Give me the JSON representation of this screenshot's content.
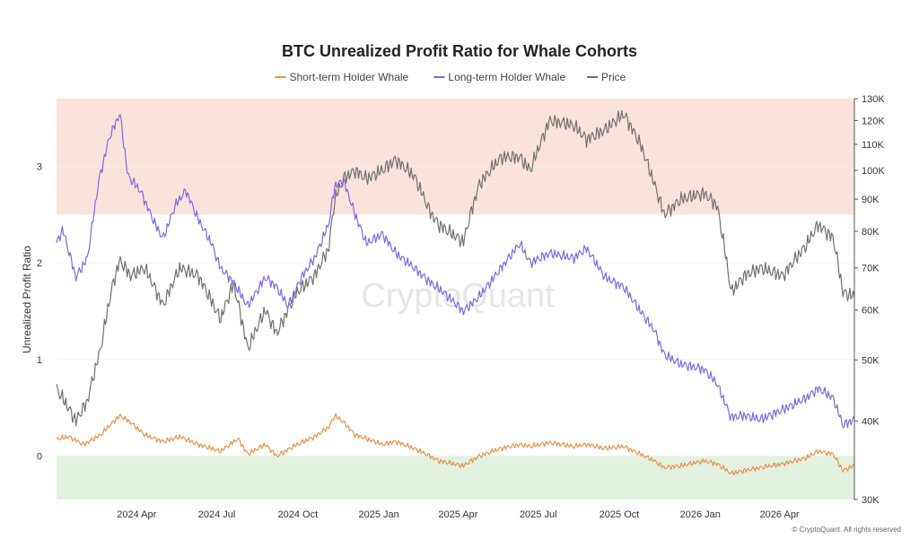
{
  "chart_data": {
    "type": "line",
    "title": "BTC Unrealized Profit Ratio for Whale Cohorts",
    "ylabel": "Unrealized Profit Ratio",
    "ylim": [
      -0.45,
      3.7
    ],
    "y2_scale": "log",
    "y2_range": [
      30000,
      130000
    ],
    "y_ticks": [
      "0",
      "1",
      "2",
      "3"
    ],
    "y2_ticks": [
      "30K",
      "40K",
      "50K",
      "60K",
      "70K",
      "80K",
      "90K",
      "100K",
      "110K",
      "120K",
      "130K"
    ],
    "x_ticks": [
      "2024 Apr",
      "2024 Jul",
      "2024 Oct",
      "2025 Jan",
      "2025 Apr",
      "2025 Jul",
      "2025 Oct",
      "2026 Jan",
      "2026 Apr"
    ],
    "x_range": [
      "2024-01-01",
      "2026-06-25"
    ],
    "legend_position": "top-center",
    "zones": [
      {
        "name": "high",
        "from": 2.5,
        "to": 3.7,
        "color": "#fbe3dc"
      },
      {
        "name": "low",
        "from": -0.45,
        "to": 0,
        "color": "#e3f1e1"
      }
    ],
    "series": [
      {
        "name": "Short-term Holder Whale",
        "axis": "left",
        "color": "#e8914a",
        "x": [
          "2024-01-01",
          "2024-01-15",
          "2024-02-01",
          "2024-02-20",
          "2024-03-05",
          "2024-03-13",
          "2024-03-25",
          "2024-04-10",
          "2024-05-01",
          "2024-05-20",
          "2024-06-10",
          "2024-07-05",
          "2024-07-25",
          "2024-08-05",
          "2024-08-25",
          "2024-09-07",
          "2024-09-30",
          "2024-10-20",
          "2024-11-05",
          "2024-11-12",
          "2024-11-22",
          "2024-12-05",
          "2024-12-18",
          "2025-01-05",
          "2025-01-20",
          "2025-02-10",
          "2025-02-28",
          "2025-03-10",
          "2025-04-07",
          "2025-04-25",
          "2025-05-20",
          "2025-06-10",
          "2025-06-22",
          "2025-07-14",
          "2025-08-10",
          "2025-08-25",
          "2025-09-15",
          "2025-10-06",
          "2025-10-25",
          "2025-11-10",
          "2025-11-21",
          "2025-12-10",
          "2026-01-05",
          "2026-01-20",
          "2026-02-05",
          "2026-02-20",
          "2026-03-10",
          "2026-04-05",
          "2026-05-01",
          "2026-05-15",
          "2026-06-01",
          "2026-06-12",
          "2026-06-25"
        ],
        "values": [
          0.18,
          0.2,
          0.12,
          0.22,
          0.35,
          0.42,
          0.35,
          0.22,
          0.15,
          0.2,
          0.12,
          0.05,
          0.18,
          0.02,
          0.12,
          0.0,
          0.12,
          0.2,
          0.3,
          0.42,
          0.35,
          0.22,
          0.18,
          0.12,
          0.15,
          0.08,
          0.0,
          -0.05,
          -0.1,
          0.0,
          0.08,
          0.12,
          0.1,
          0.14,
          0.1,
          0.12,
          0.08,
          0.1,
          0.02,
          -0.05,
          -0.12,
          -0.1,
          -0.05,
          -0.08,
          -0.18,
          -0.15,
          -0.12,
          -0.08,
          -0.02,
          0.05,
          0.02,
          -0.15,
          -0.1
        ]
      },
      {
        "name": "Long-term Holder Whale",
        "axis": "left",
        "color": "#7b6ae0",
        "x": [
          "2024-01-01",
          "2024-01-08",
          "2024-01-23",
          "2024-02-05",
          "2024-02-18",
          "2024-03-01",
          "2024-03-13",
          "2024-03-22",
          "2024-04-05",
          "2024-04-22",
          "2024-05-01",
          "2024-05-15",
          "2024-05-27",
          "2024-06-10",
          "2024-06-25",
          "2024-07-05",
          "2024-07-20",
          "2024-08-05",
          "2024-08-25",
          "2024-09-07",
          "2024-09-20",
          "2024-10-05",
          "2024-10-20",
          "2024-11-05",
          "2024-11-12",
          "2024-11-22",
          "2024-12-05",
          "2024-12-18",
          "2025-01-05",
          "2025-01-20",
          "2025-02-10",
          "2025-02-28",
          "2025-03-15",
          "2025-04-07",
          "2025-04-25",
          "2025-05-20",
          "2025-06-10",
          "2025-06-22",
          "2025-07-14",
          "2025-08-10",
          "2025-08-25",
          "2025-09-15",
          "2025-10-06",
          "2025-10-25",
          "2025-11-10",
          "2025-11-21",
          "2025-12-10",
          "2026-01-05",
          "2026-01-20",
          "2026-02-05",
          "2026-02-20",
          "2026-03-10",
          "2026-04-05",
          "2026-05-01",
          "2026-05-15",
          "2026-06-01",
          "2026-06-12",
          "2026-06-25"
        ],
        "values": [
          2.2,
          2.35,
          1.85,
          2.05,
          2.85,
          3.3,
          3.55,
          2.9,
          2.75,
          2.4,
          2.25,
          2.6,
          2.75,
          2.45,
          2.2,
          1.95,
          1.8,
          1.55,
          1.85,
          1.75,
          1.55,
          1.85,
          2.05,
          2.4,
          2.8,
          2.85,
          2.5,
          2.2,
          2.3,
          2.1,
          1.95,
          1.8,
          1.7,
          1.5,
          1.65,
          1.95,
          2.2,
          2.0,
          2.1,
          2.05,
          2.15,
          1.85,
          1.75,
          1.5,
          1.3,
          1.05,
          0.95,
          0.9,
          0.75,
          0.4,
          0.42,
          0.38,
          0.48,
          0.6,
          0.7,
          0.6,
          0.32,
          0.38
        ]
      },
      {
        "name": "Price",
        "axis": "right",
        "color": "#707070",
        "x": [
          "2024-01-01",
          "2024-01-23",
          "2024-02-05",
          "2024-02-20",
          "2024-03-05",
          "2024-03-13",
          "2024-03-25",
          "2024-04-10",
          "2024-05-01",
          "2024-05-20",
          "2024-06-10",
          "2024-07-05",
          "2024-07-20",
          "2024-08-05",
          "2024-08-25",
          "2024-09-07",
          "2024-09-30",
          "2024-10-20",
          "2024-11-05",
          "2024-11-12",
          "2024-11-22",
          "2024-12-05",
          "2024-12-18",
          "2025-01-05",
          "2025-01-20",
          "2025-02-10",
          "2025-02-28",
          "2025-03-10",
          "2025-04-07",
          "2025-04-25",
          "2025-05-20",
          "2025-06-10",
          "2025-06-22",
          "2025-07-14",
          "2025-08-10",
          "2025-08-25",
          "2025-09-15",
          "2025-10-06",
          "2025-10-25",
          "2025-11-10",
          "2025-11-21",
          "2025-12-10",
          "2026-01-05",
          "2026-01-20",
          "2026-02-05",
          "2026-02-20",
          "2026-03-10",
          "2026-04-05",
          "2026-05-01",
          "2026-05-15",
          "2026-06-01",
          "2026-06-12",
          "2026-06-25"
        ],
        "values": [
          45000,
          40000,
          43000,
          52000,
          66000,
          72000,
          68000,
          70000,
          61000,
          70000,
          68000,
          58000,
          66000,
          52000,
          60000,
          55000,
          64000,
          68000,
          75000,
          90000,
          97000,
          100000,
          97000,
          100000,
          104000,
          98000,
          86000,
          82000,
          77000,
          95000,
          105000,
          105000,
          100000,
          120000,
          118000,
          112000,
          116000,
          123000,
          110000,
          95000,
          85000,
          90000,
          92000,
          88000,
          64000,
          68000,
          70000,
          68000,
          76000,
          82000,
          78000,
          64000,
          63000
        ]
      }
    ]
  },
  "watermark": "CryptoQuant",
  "copyright": "© CryptoQuant. All rights reserved"
}
